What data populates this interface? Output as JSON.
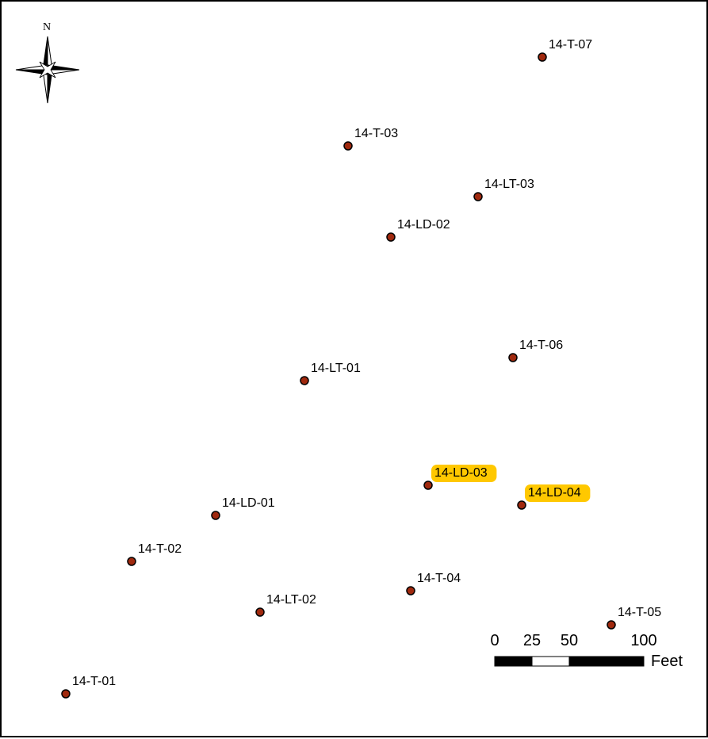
{
  "compass": {
    "north_label": "N",
    "icon": "north-arrow-icon"
  },
  "colors": {
    "point_fill": "#a0290e",
    "point_stroke": "#000000",
    "highlight": "#ffc800"
  },
  "points": [
    {
      "id": "14-T-07",
      "label": "14-T-07",
      "highlighted": false
    },
    {
      "id": "14-T-03",
      "label": "14-T-03",
      "highlighted": false
    },
    {
      "id": "14-LT-03",
      "label": "14-LT-03",
      "highlighted": false
    },
    {
      "id": "14-LD-02",
      "label": "14-LD-02",
      "highlighted": false
    },
    {
      "id": "14-T-06",
      "label": "14-T-06",
      "highlighted": false
    },
    {
      "id": "14-LT-01",
      "label": "14-LT-01",
      "highlighted": false
    },
    {
      "id": "14-LD-03",
      "label": "14-LD-03",
      "highlighted": true
    },
    {
      "id": "14-LD-04",
      "label": "14-LD-04",
      "highlighted": true
    },
    {
      "id": "14-LD-01",
      "label": "14-LD-01",
      "highlighted": false
    },
    {
      "id": "14-T-02",
      "label": "14-T-02",
      "highlighted": false
    },
    {
      "id": "14-T-04",
      "label": "14-T-04",
      "highlighted": false
    },
    {
      "id": "14-LT-02",
      "label": "14-LT-02",
      "highlighted": false
    },
    {
      "id": "14-T-05",
      "label": "14-T-05",
      "highlighted": false
    },
    {
      "id": "14-T-01",
      "label": "14-T-01",
      "highlighted": false
    }
  ],
  "scale_bar": {
    "ticks": [
      "0",
      "25",
      "50",
      "100"
    ],
    "unit": "Feet"
  }
}
